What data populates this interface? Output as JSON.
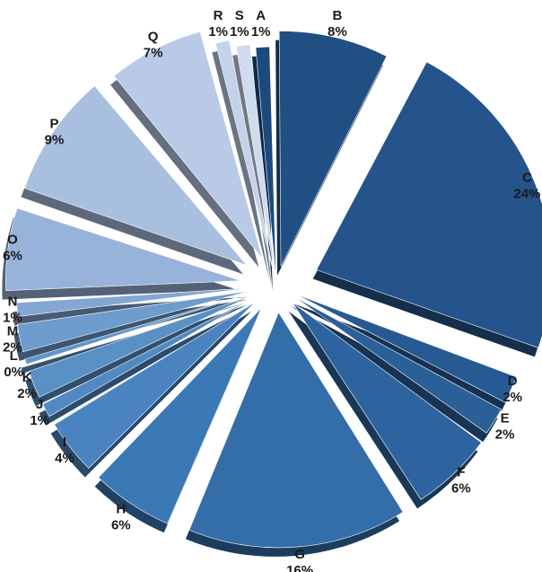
{
  "chart_data": {
    "type": "pie",
    "title": "",
    "style": "exploded 3D pie",
    "legend": "none",
    "slices": [
      {
        "label": "A",
        "value": 1,
        "value_label": "1%",
        "color": "#1d4a7e"
      },
      {
        "label": "B",
        "value": 8,
        "value_label": "8%",
        "color": "#204f84"
      },
      {
        "label": "C",
        "value": 24,
        "value_label": "24%",
        "color": "#24548b"
      },
      {
        "label": "D",
        "value": 2,
        "value_label": "2%",
        "color": "#275a92"
      },
      {
        "label": "E",
        "value": 2,
        "value_label": "2%",
        "color": "#2a5f98"
      },
      {
        "label": "F",
        "value": 6,
        "value_label": "6%",
        "color": "#2d649f"
      },
      {
        "label": "G",
        "value": 16,
        "value_label": "16%",
        "color": "#336ea9"
      },
      {
        "label": "H",
        "value": 6,
        "value_label": "6%",
        "color": "#3b78b6"
      },
      {
        "label": "I",
        "value": 4,
        "value_label": "4%",
        "color": "#4a84c0"
      },
      {
        "label": "J",
        "value": 1,
        "value_label": "1%",
        "color": "#5189c2"
      },
      {
        "label": "K",
        "value": 2,
        "value_label": "2%",
        "color": "#5990c6"
      },
      {
        "label": "L",
        "value": 0,
        "value_label": "0%",
        "color": "#6196ca"
      },
      {
        "label": "M",
        "value": 2,
        "value_label": "2%",
        "color": "#6d9ccd"
      },
      {
        "label": "N",
        "value": 1,
        "value_label": "1%",
        "color": "#84a6d3"
      },
      {
        "label": "O",
        "value": 6,
        "value_label": "6%",
        "color": "#98b3da"
      },
      {
        "label": "P",
        "value": 9,
        "value_label": "9%",
        "color": "#a9bfe0"
      },
      {
        "label": "Q",
        "value": 7,
        "value_label": "7%",
        "color": "#b8cae6"
      },
      {
        "label": "R",
        "value": 1,
        "value_label": "1%",
        "color": "#c4d2ea"
      },
      {
        "label": "S",
        "value": 1,
        "value_label": "1%",
        "color": "#cfdbef"
      }
    ]
  }
}
